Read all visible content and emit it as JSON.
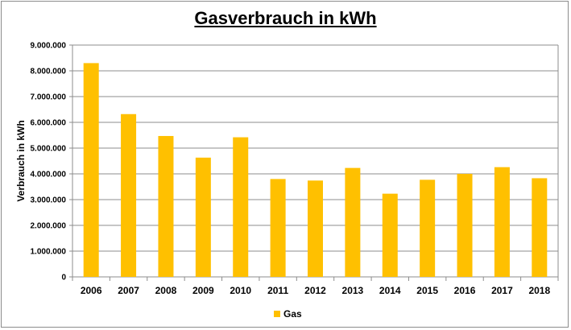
{
  "chart_data": {
    "type": "bar",
    "title": "Gasverbrauch in kWh",
    "ylabel": "Verbrauch in kWh",
    "xlabel": "",
    "categories": [
      "2006",
      "2007",
      "2008",
      "2009",
      "2010",
      "2011",
      "2012",
      "2013",
      "2014",
      "2015",
      "2016",
      "2017",
      "2018"
    ],
    "series": [
      {
        "name": "Gas",
        "color": "#FFC000",
        "values": [
          8300000,
          6320000,
          5470000,
          4630000,
          5420000,
          3800000,
          3740000,
          4230000,
          3230000,
          3770000,
          4000000,
          4260000,
          3830000
        ]
      }
    ],
    "ylim": [
      0,
      9000000
    ],
    "yticks": [
      0,
      1000000,
      2000000,
      3000000,
      4000000,
      5000000,
      6000000,
      7000000,
      8000000,
      9000000
    ],
    "ytick_labels": [
      "0",
      "1.000.000",
      "2.000.000",
      "3.000.000",
      "4.000.000",
      "5.000.000",
      "6.000.000",
      "7.000.000",
      "8.000.000",
      "9.000.000"
    ],
    "grid": true,
    "legend_position": "bottom"
  }
}
